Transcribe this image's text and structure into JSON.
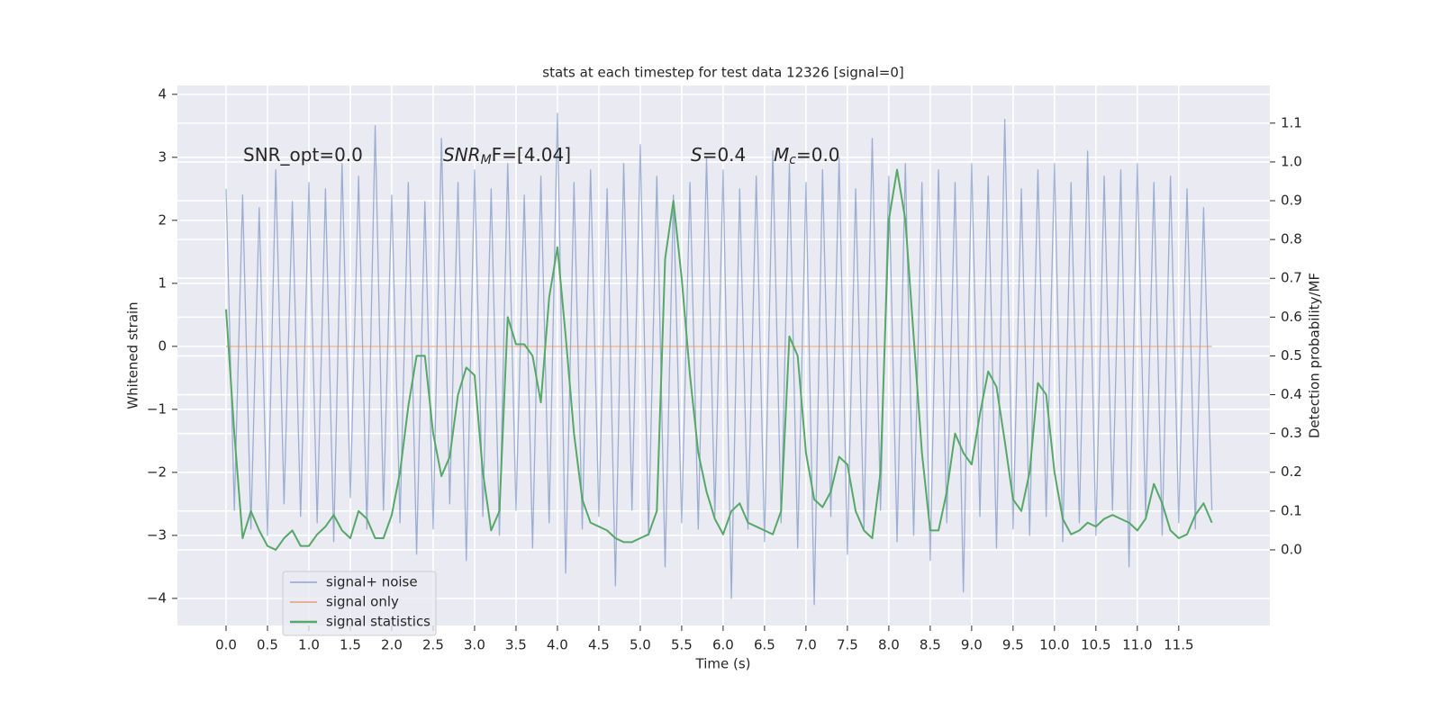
{
  "chart_data": {
    "type": "line",
    "title": "stats at each timestep for test data 12326 [signal=0]",
    "xlabel": "Time (s)",
    "ylabel": "Whitened strain",
    "y2label": "Detection probability/MF",
    "annotations": [
      {
        "parts": [
          "SNR_opt=0.0"
        ]
      },
      {
        "parts": [
          "SNR",
          "M",
          "F=[4.04]"
        ]
      },
      {
        "parts": [
          "S",
          "=0.4"
        ]
      },
      {
        "parts": [
          "M",
          "c",
          "=0.0"
        ]
      }
    ],
    "x": [
      0,
      0.1,
      0.2,
      0.3,
      0.4,
      0.5,
      0.6,
      0.7,
      0.8,
      0.9,
      1,
      1.1,
      1.2,
      1.3,
      1.4,
      1.5,
      1.6,
      1.7,
      1.8,
      1.9,
      2,
      2.1,
      2.2,
      2.3,
      2.4,
      2.5,
      2.6,
      2.7,
      2.8,
      2.9,
      3,
      3.1,
      3.2,
      3.3,
      3.4,
      3.5,
      3.6,
      3.7,
      3.8,
      3.9,
      4,
      4.1,
      4.2,
      4.3,
      4.4,
      4.5,
      4.6,
      4.7,
      4.8,
      4.9,
      5,
      5.1,
      5.2,
      5.3,
      5.4,
      5.5,
      5.6,
      5.7,
      5.8,
      5.9,
      6,
      6.1,
      6.2,
      6.3,
      6.4,
      6.5,
      6.6,
      6.7,
      6.8,
      6.9,
      7,
      7.1,
      7.2,
      7.3,
      7.4,
      7.5,
      7.6,
      7.7,
      7.8,
      7.9,
      8,
      8.1,
      8.2,
      8.3,
      8.4,
      8.5,
      8.6,
      8.7,
      8.8,
      8.9,
      9,
      9.1,
      9.2,
      9.3,
      9.4,
      9.5,
      9.6,
      9.7,
      9.8,
      9.9,
      10,
      10.1,
      10.2,
      10.3,
      10.4,
      10.5,
      10.6,
      10.7,
      10.8,
      10.9,
      11,
      11.1,
      11.2,
      11.3,
      11.4,
      11.5,
      11.6,
      11.7,
      11.8,
      11.9
    ],
    "series": [
      {
        "name": "signal+ noise",
        "color": "#4c72b0",
        "axis": "y",
        "values": [
          2.5,
          -2.6,
          2.4,
          -2.9,
          2.2,
          -3.0,
          2.8,
          -2.5,
          2.3,
          -2.7,
          2.6,
          -2.8,
          2.5,
          -3.1,
          2.9,
          -2.4,
          2.7,
          -2.9,
          3.5,
          -2.6,
          2.4,
          -2.8,
          2.6,
          -3.3,
          2.3,
          -2.9,
          3.3,
          -2.5,
          2.6,
          -3.4,
          2.8,
          -2.7,
          2.5,
          -3.0,
          2.9,
          -2.6,
          2.4,
          -3.2,
          2.7,
          -2.8,
          3.7,
          -3.6,
          2.6,
          -2.9,
          2.8,
          -2.7,
          2.5,
          -3.8,
          2.9,
          -2.6,
          3.2,
          -3.0,
          2.7,
          -3.5,
          2.4,
          -2.8,
          2.6,
          -2.9,
          3.0,
          -2.7,
          2.8,
          -4.0,
          2.5,
          -2.9,
          2.7,
          -3.1,
          3.1,
          -2.8,
          2.9,
          -3.2,
          2.6,
          -4.1,
          2.8,
          -2.7,
          3.0,
          -3.3,
          2.5,
          -2.9,
          3.3,
          -2.6,
          2.7,
          -3.1,
          2.9,
          -3.0,
          2.6,
          -3.4,
          2.8,
          -2.8,
          2.6,
          -3.9,
          2.9,
          -2.7,
          2.7,
          -3.2,
          3.6,
          -2.9,
          2.5,
          -3.0,
          2.8,
          -2.7,
          2.9,
          -3.1,
          2.6,
          -2.8,
          3.1,
          -3.0,
          2.7,
          -2.6,
          2.8,
          -3.5,
          2.9,
          -2.7,
          2.6,
          -3.0,
          2.7,
          -2.8,
          2.5,
          -2.9,
          2.2,
          -2.6
        ]
      },
      {
        "name": "signal only",
        "color": "#dd8452",
        "axis": "y",
        "values": [
          0,
          0,
          0,
          0,
          0,
          0,
          0,
          0,
          0,
          0,
          0,
          0,
          0,
          0,
          0,
          0,
          0,
          0,
          0,
          0,
          0,
          0,
          0,
          0,
          0,
          0,
          0,
          0,
          0,
          0,
          0,
          0,
          0,
          0,
          0,
          0,
          0,
          0,
          0,
          0,
          0,
          0,
          0,
          0,
          0,
          0,
          0,
          0,
          0,
          0,
          0,
          0,
          0,
          0,
          0,
          0,
          0,
          0,
          0,
          0,
          0,
          0,
          0,
          0,
          0,
          0,
          0,
          0,
          0,
          0,
          0,
          0,
          0,
          0,
          0,
          0,
          0,
          0,
          0,
          0,
          0,
          0,
          0,
          0,
          0,
          0,
          0,
          0,
          0,
          0,
          0,
          0,
          0,
          0,
          0,
          0,
          0,
          0,
          0,
          0,
          0,
          0,
          0,
          0,
          0,
          0,
          0,
          0,
          0,
          0,
          0,
          0,
          0,
          0,
          0,
          0,
          0,
          0,
          0,
          0
        ]
      },
      {
        "name": "signal statistics",
        "color": "#55a868",
        "axis": "y2",
        "values": [
          0.62,
          0.3,
          0.03,
          0.1,
          0.05,
          0.01,
          0.0,
          0.03,
          0.05,
          0.01,
          0.01,
          0.04,
          0.06,
          0.09,
          0.05,
          0.03,
          0.1,
          0.08,
          0.03,
          0.03,
          0.09,
          0.2,
          0.37,
          0.5,
          0.5,
          0.3,
          0.19,
          0.24,
          0.4,
          0.47,
          0.45,
          0.2,
          0.05,
          0.1,
          0.6,
          0.53,
          0.53,
          0.5,
          0.38,
          0.65,
          0.78,
          0.55,
          0.3,
          0.13,
          0.07,
          0.06,
          0.05,
          0.03,
          0.02,
          0.02,
          0.03,
          0.04,
          0.1,
          0.75,
          0.9,
          0.7,
          0.45,
          0.25,
          0.15,
          0.08,
          0.04,
          0.1,
          0.12,
          0.07,
          0.06,
          0.05,
          0.04,
          0.1,
          0.55,
          0.5,
          0.25,
          0.13,
          0.11,
          0.15,
          0.24,
          0.22,
          0.1,
          0.05,
          0.03,
          0.2,
          0.85,
          0.98,
          0.85,
          0.55,
          0.25,
          0.05,
          0.05,
          0.15,
          0.3,
          0.25,
          0.22,
          0.35,
          0.46,
          0.42,
          0.28,
          0.13,
          0.1,
          0.2,
          0.43,
          0.4,
          0.2,
          0.08,
          0.04,
          0.05,
          0.07,
          0.06,
          0.08,
          0.09,
          0.08,
          0.07,
          0.05,
          0.08,
          0.17,
          0.12,
          0.05,
          0.03,
          0.04,
          0.09,
          0.12,
          0.07
        ]
      }
    ],
    "xlim": [
      -0.587,
      12.6
    ],
    "xticks": [
      {
        "value": 0,
        "label": "0.0"
      },
      0.5,
      {
        "value": 1,
        "label": "1.0"
      },
      1.5,
      {
        "value": 2,
        "label": "2.0"
      },
      2.5,
      {
        "value": 3,
        "label": "3.0"
      },
      3.5,
      {
        "value": 4,
        "label": "4.0"
      },
      4.5,
      {
        "value": 5,
        "label": "5.0"
      },
      5.5,
      {
        "value": 6,
        "label": "6.0"
      },
      6.5,
      {
        "value": 7,
        "label": "7.0"
      },
      7.5,
      {
        "value": 8,
        "label": "8.0"
      },
      8.5,
      {
        "value": 9,
        "label": "9.0"
      },
      9.5,
      {
        "value": 10,
        "label": "10.0"
      },
      10.5,
      {
        "value": 11,
        "label": "11.0"
      },
      11.5
    ],
    "ylim": [
      -4.43,
      4.14
    ],
    "yticks": [
      {
        "value": -4,
        "label": "−4"
      },
      {
        "value": -3,
        "label": "−3"
      },
      {
        "value": -2,
        "label": "−2"
      },
      {
        "value": -1,
        "label": "−1"
      },
      0,
      1,
      2,
      3,
      4
    ],
    "y2lim": [
      -0.195,
      1.197
    ],
    "y2ticks": [
      {
        "value": 0,
        "label": "0.0"
      },
      0.1,
      0.2,
      0.3,
      0.4,
      0.5,
      0.6,
      0.7,
      0.8,
      0.9,
      {
        "value": 1,
        "label": "1.0"
      },
      1.1
    ],
    "grid": true,
    "legend": "lower left"
  }
}
